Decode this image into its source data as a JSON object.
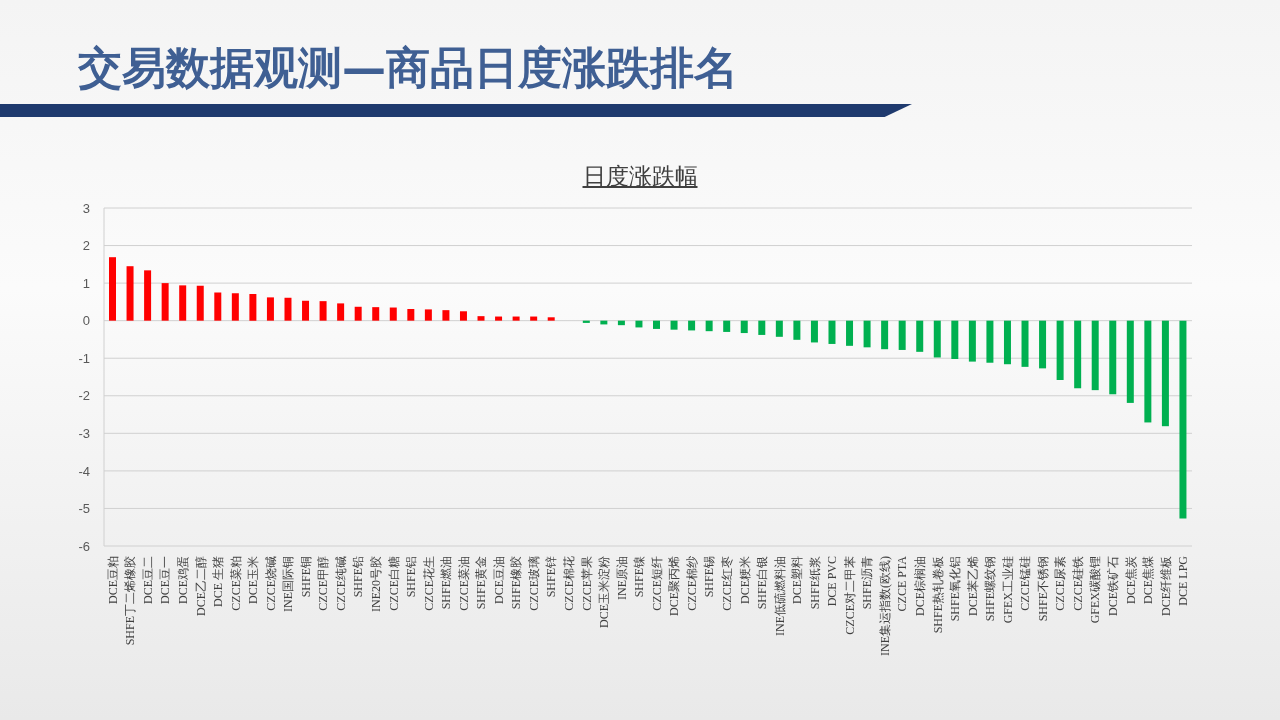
{
  "chart_data": {
    "type": "bar",
    "title": "交易数据观测—商品日度涨跌排名",
    "subtitle": "日度涨跌幅",
    "categories": [
      "DCE豆粕",
      "SHFE丁二烯橡胶",
      "DCE豆二",
      "DCE豆一",
      "DCE鸡蛋",
      "DCE乙二醇",
      "DCE 生猪",
      "CZCE菜粕",
      "DCE玉米",
      "CZCE烧碱",
      "INE国际铜",
      "SHFE铜",
      "CZCE甲醇",
      "CZCE纯碱",
      "SHFE铅",
      "INE20号胶",
      "CZCE白糖",
      "SHFE铝",
      "CZCE花生",
      "SHFE燃油",
      "CZCE菜油",
      "SHFE黄金",
      "DCE豆油",
      "SHFE橡胶",
      "CZCE玻璃",
      "SHFE锌",
      "CZCE棉花",
      "CZCE苹果",
      "DCE玉米淀粉",
      "INE原油",
      "SHFE镍",
      "CZCE短纤",
      "DCE聚丙烯",
      "CZCE棉纱",
      "SHFE锡",
      "CZCE红枣",
      "DCE粳米",
      "SHFE白银",
      "INE低硫燃料油",
      "DCE塑料",
      "SHFE纸浆",
      "DCE PVC",
      "CZCE对二甲苯",
      "SHFE沥青",
      "INE集运指数(欧线)",
      "CZCE PTA",
      "DCE棕榈油",
      "SHFE热轧卷板",
      "SHFE氧化铝",
      "DCE苯乙烯",
      "SHFE螺纹钢",
      "GFEX工业硅",
      "CZCE锰硅",
      "SHFE不锈钢",
      "CZCE尿素",
      "CZCE硅铁",
      "GFEX碳酸锂",
      "DCE铁矿石",
      "DCE焦炭",
      "DCE焦煤",
      "DCE纤维板",
      "DCE LPG"
    ],
    "values": [
      1.69,
      1.45,
      1.34,
      1.0,
      0.94,
      0.93,
      0.75,
      0.73,
      0.71,
      0.62,
      0.61,
      0.53,
      0.52,
      0.46,
      0.37,
      0.36,
      0.35,
      0.31,
      0.3,
      0.28,
      0.25,
      0.12,
      0.11,
      0.11,
      0.11,
      0.09,
      0,
      -0.06,
      -0.1,
      -0.12,
      -0.18,
      -0.22,
      -0.24,
      -0.26,
      -0.28,
      -0.3,
      -0.33,
      -0.38,
      -0.43,
      -0.51,
      -0.58,
      -0.62,
      -0.67,
      -0.71,
      -0.76,
      -0.78,
      -0.83,
      -0.98,
      -1.02,
      -1.09,
      -1.12,
      -1.16,
      -1.23,
      -1.27,
      -1.58,
      -1.8,
      -1.85,
      -1.96,
      -2.19,
      -2.71,
      -2.81,
      -5.27
    ],
    "colors": [
      "#ff0000",
      "#ff0000",
      "#ff0000",
      "#ff0000",
      "#ff0000",
      "#ff0000",
      "#ff0000",
      "#ff0000",
      "#ff0000",
      "#ff0000",
      "#ff0000",
      "#ff0000",
      "#ff0000",
      "#ff0000",
      "#ff0000",
      "#ff0000",
      "#ff0000",
      "#ff0000",
      "#ff0000",
      "#ff0000",
      "#ff0000",
      "#ff0000",
      "#ff0000",
      "#ff0000",
      "#ff0000",
      "#ff0000",
      "#ff0000",
      "#00b050",
      "#00b050",
      "#00b050",
      "#00b050",
      "#00b050",
      "#00b050",
      "#00b050",
      "#00b050",
      "#00b050",
      "#00b050",
      "#00b050",
      "#00b050",
      "#00b050",
      "#00b050",
      "#00b050",
      "#00b050",
      "#00b050",
      "#00b050",
      "#00b050",
      "#00b050",
      "#00b050",
      "#00b050",
      "#00b050",
      "#00b050",
      "#00b050",
      "#00b050",
      "#00b050",
      "#00b050",
      "#00b050",
      "#00b050",
      "#00b050",
      "#00b050",
      "#00b050",
      "#00b050",
      "#00b050"
    ],
    "ylim": [
      -6,
      3
    ],
    "yticks": [
      -6,
      -5,
      -4,
      -3,
      -2,
      -1,
      0,
      1,
      2,
      3
    ],
    "grid": "y"
  }
}
